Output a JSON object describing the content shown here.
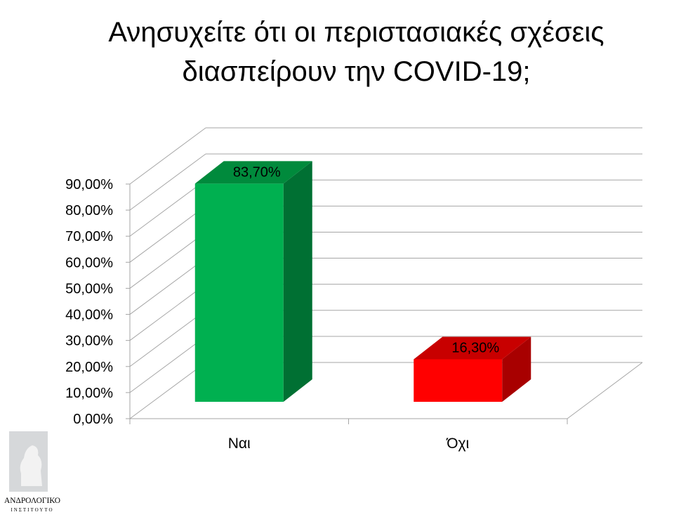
{
  "chart_data": {
    "type": "bar",
    "style": "3d-column",
    "title_lines": [
      "Ανησυχείτε ότι οι περιστασιακές σχέσεις",
      "διασπείρουν την COVID-19;"
    ],
    "categories": [
      "Ναι",
      "Όχι"
    ],
    "values": [
      83.7,
      16.3
    ],
    "data_labels": [
      "83,70%",
      "16,30%"
    ],
    "colors": [
      "#00b050",
      "#ff0000"
    ],
    "side_colors": [
      "#007033",
      "#a80000"
    ],
    "top_colors": [
      "#008a3c",
      "#c80000"
    ],
    "ylim": [
      0,
      90
    ],
    "yticks": [
      0,
      10,
      20,
      30,
      40,
      50,
      60,
      70,
      80,
      90
    ],
    "ytick_labels": [
      "0,00%",
      "10,00%",
      "20,00%",
      "30,00%",
      "40,00%",
      "50,00%",
      "60,00%",
      "70,00%",
      "80,00%",
      "90,00%"
    ],
    "grid": true,
    "legend": "none"
  },
  "logo": {
    "text_line1": "ΑΝΔΡΟΛΟΓΙΚΟ",
    "text_line2": "ΙΝΣΤΙΤΟΥΤΟ"
  }
}
